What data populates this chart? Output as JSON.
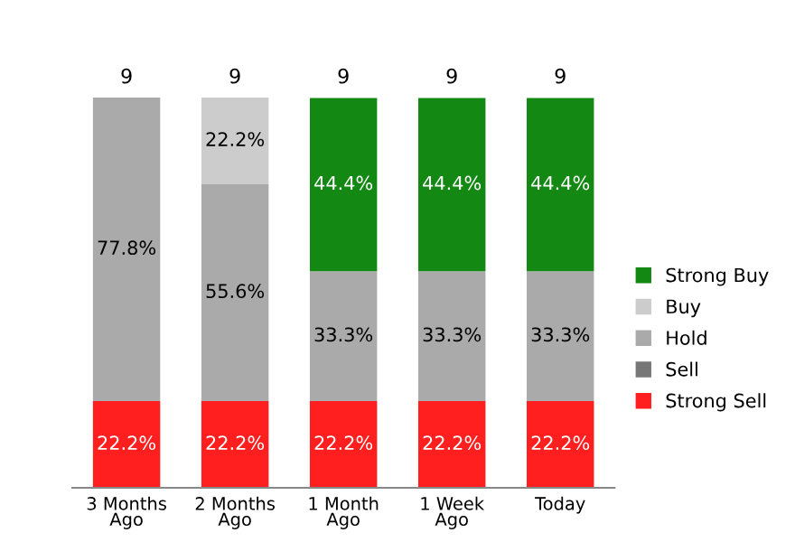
{
  "chart_data": {
    "type": "bar",
    "stacked": true,
    "categories": [
      "3 Months\nAgo",
      "2 Months\nAgo",
      "1 Month\nAgo",
      "1 Week\nAgo",
      "Today"
    ],
    "series": [
      {
        "name": "Strong Sell",
        "color": "#ff1f1f",
        "values": [
          22.2,
          22.2,
          22.2,
          22.2,
          22.2
        ],
        "value_labels": [
          "22.2%",
          "22.2%",
          "22.2%",
          "22.2%",
          "22.2%"
        ]
      },
      {
        "name": "Sell",
        "color": "#777777",
        "values": [
          0,
          0,
          0,
          0,
          0
        ],
        "value_labels": [
          null,
          null,
          null,
          null,
          null
        ]
      },
      {
        "name": "Hold",
        "color": "#aaaaaa",
        "values": [
          77.8,
          55.6,
          33.3,
          33.3,
          33.3
        ],
        "value_labels": [
          "77.8%",
          "55.6%",
          "33.3%",
          "33.3%",
          "33.3%"
        ]
      },
      {
        "name": "Buy",
        "color": "#cccccc",
        "values": [
          0,
          22.2,
          0,
          0,
          0
        ],
        "value_labels": [
          null,
          "22.2%",
          null,
          null,
          null
        ]
      },
      {
        "name": "Strong Buy",
        "color": "#138813",
        "values": [
          0,
          0,
          44.4,
          44.4,
          44.4
        ],
        "value_labels": [
          null,
          null,
          "44.4%",
          "44.4%",
          "44.4%"
        ]
      }
    ],
    "annotations": [
      {
        "text": "9",
        "x": "3 Months\nAgo",
        "y": 100
      },
      {
        "text": "9",
        "x": "2 Months\nAgo",
        "y": 100
      },
      {
        "text": "9",
        "x": "1 Month\nAgo",
        "y": 100
      },
      {
        "text": "9",
        "x": "1 Week\nAgo",
        "y": 100
      },
      {
        "text": "9",
        "x": "Today",
        "y": 100
      }
    ],
    "ylim": [
      0,
      100
    ],
    "tick_labels": "x",
    "legend": "right"
  }
}
